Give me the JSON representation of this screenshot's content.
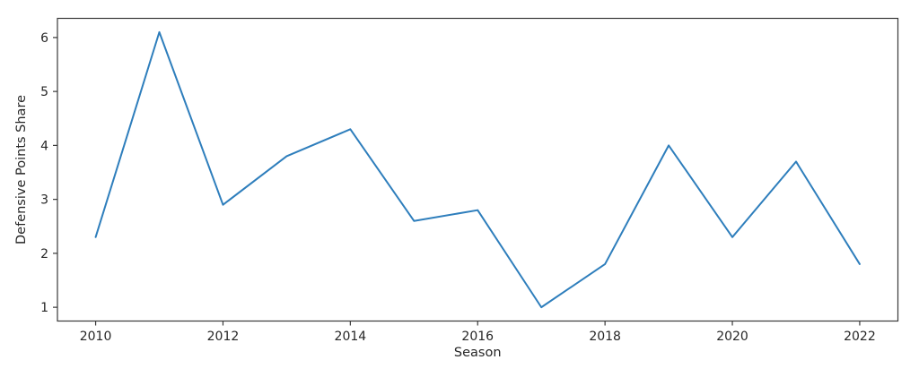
{
  "chart_data": {
    "type": "line",
    "title": "",
    "xlabel": "Season",
    "ylabel": "Defensive Points Share",
    "x": [
      2010,
      2011,
      2012,
      2013,
      2014,
      2015,
      2016,
      2017,
      2018,
      2019,
      2020,
      2021,
      2022
    ],
    "series": [
      {
        "name": "Defensive Points Share",
        "values": [
          2.3,
          6.1,
          2.9,
          3.8,
          4.3,
          2.6,
          2.8,
          1.0,
          1.8,
          4.0,
          2.3,
          3.7,
          1.8
        ]
      }
    ],
    "xticks": [
      2010,
      2012,
      2014,
      2016,
      2018,
      2020,
      2022
    ],
    "yticks": [
      1,
      2,
      3,
      4,
      5,
      6
    ],
    "xlim": [
      2009.4,
      2022.6
    ],
    "ylim": [
      0.745,
      6.355
    ],
    "grid": false,
    "legend_position": "none",
    "colors": {
      "line": "#2e7ebc",
      "axis": "#3a3a3a",
      "text": "#262626",
      "background": "#ffffff"
    }
  }
}
